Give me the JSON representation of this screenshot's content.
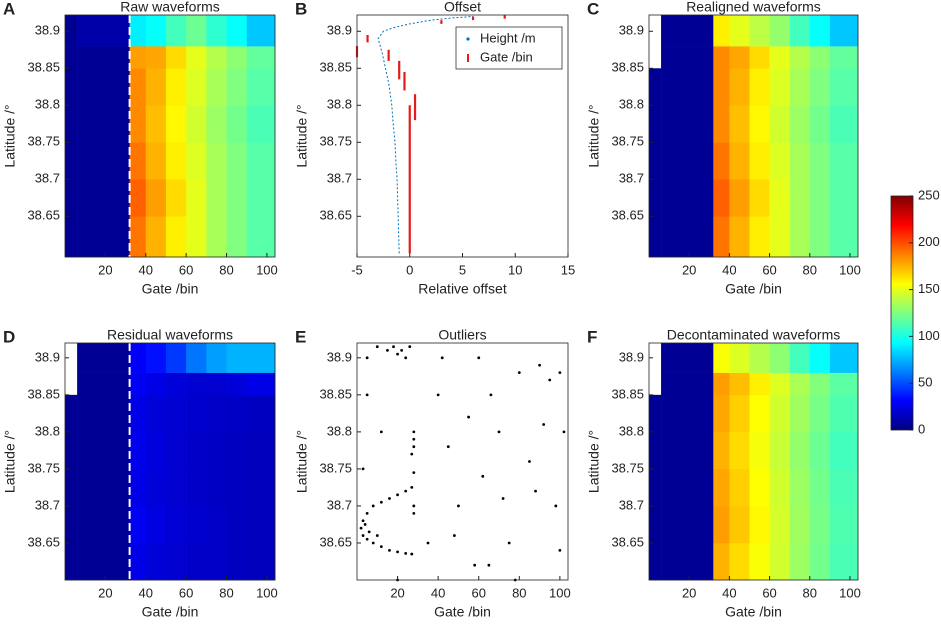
{
  "chart_data": [
    {
      "type": "heatmap",
      "label": "A",
      "title": "Raw waveforms",
      "xlabel": "Gate /bin",
      "ylabel": "Latitude /°",
      "xlim": [
        0,
        104
      ],
      "ylim": [
        38.595,
        38.922
      ],
      "xticks": [
        20,
        40,
        60,
        80,
        100
      ],
      "yticks": [
        38.65,
        38.7,
        38.75,
        38.8,
        38.85,
        38.9
      ],
      "x_bins": [
        0,
        6,
        32,
        40,
        50,
        60,
        70,
        80,
        90,
        104
      ],
      "y_bins": [
        38.595,
        38.65,
        38.7,
        38.75,
        38.8,
        38.85,
        38.88,
        38.922
      ],
      "values": [
        [
          5,
          5,
          190,
          175,
          160,
          150,
          135,
          125,
          115
        ],
        [
          5,
          5,
          195,
          180,
          165,
          150,
          135,
          125,
          115
        ],
        [
          5,
          5,
          190,
          175,
          160,
          148,
          135,
          125,
          115
        ],
        [
          5,
          5,
          185,
          172,
          158,
          145,
          132,
          122,
          112
        ],
        [
          5,
          5,
          185,
          175,
          160,
          148,
          135,
          125,
          115
        ],
        [
          5,
          5,
          180,
          178,
          165,
          150,
          138,
          128,
          118
        ],
        [
          5,
          10,
          90,
          95,
          110,
          120,
          105,
          95,
          80
        ]
      ]
    },
    {
      "type": "line",
      "label": "B",
      "title": "Offset",
      "xlabel": "Relative offset",
      "ylabel": "Latitude /°",
      "xlim": [
        -5,
        15
      ],
      "ylim": [
        38.595,
        38.922
      ],
      "xticks": [
        -5,
        0,
        5,
        10,
        15
      ],
      "yticks": [
        38.65,
        38.7,
        38.75,
        38.8,
        38.85,
        38.9
      ],
      "legend": "northeast",
      "series": [
        {
          "name": "Height /m",
          "color": "#0072bd",
          "x": [
            -1,
            -1.1,
            -1.2,
            -1.3,
            -1.4,
            -1.6,
            -1.7,
            -1.9,
            -2,
            -2.3,
            -2.6,
            -2.9,
            -3,
            -2.5,
            -1.5,
            0,
            2,
            4,
            6
          ],
          "y": [
            38.6,
            38.65,
            38.7,
            38.72,
            38.75,
            38.78,
            38.8,
            38.82,
            38.83,
            38.85,
            38.87,
            38.885,
            38.89,
            38.9,
            38.905,
            38.91,
            38.915,
            38.918,
            38.92
          ]
        },
        {
          "name": "Gate /bin",
          "color": "#e41a1c",
          "x": [
            0,
            0,
            null,
            0.5,
            0.5,
            null,
            -0.5,
            -0.5,
            null,
            -1,
            -1,
            null,
            -2,
            -2,
            null,
            -4,
            -4,
            null,
            -5,
            -5,
            null,
            3,
            3,
            null,
            6,
            6,
            null,
            9,
            9
          ],
          "y": [
            38.6,
            38.8,
            null,
            38.78,
            38.815,
            null,
            38.82,
            38.845,
            null,
            38.835,
            38.86,
            null,
            38.86,
            38.875,
            null,
            38.885,
            38.895,
            null,
            38.865,
            38.88,
            null,
            38.91,
            38.915,
            null,
            38.915,
            38.92,
            null,
            38.917,
            38.922
          ]
        }
      ]
    },
    {
      "type": "heatmap",
      "label": "C",
      "title": "Realigned waveforms",
      "xlabel": "Gate /bin",
      "ylabel": "Latitude /°",
      "xlim": [
        0,
        104
      ],
      "ylim": [
        38.595,
        38.922
      ],
      "xticks": [
        20,
        40,
        60,
        80,
        100
      ],
      "yticks": [
        38.65,
        38.7,
        38.75,
        38.8,
        38.85,
        38.9
      ],
      "x_bins": [
        0,
        6,
        32,
        40,
        50,
        60,
        70,
        80,
        90,
        104
      ],
      "y_bins": [
        38.595,
        38.65,
        38.7,
        38.75,
        38.8,
        38.85,
        38.88,
        38.922
      ],
      "values": [
        [
          5,
          5,
          190,
          175,
          160,
          150,
          135,
          125,
          115
        ],
        [
          5,
          5,
          195,
          180,
          165,
          150,
          135,
          125,
          115
        ],
        [
          5,
          5,
          190,
          175,
          160,
          148,
          135,
          125,
          115
        ],
        [
          5,
          5,
          185,
          172,
          158,
          145,
          132,
          122,
          112
        ],
        [
          5,
          5,
          185,
          175,
          160,
          148,
          135,
          125,
          115
        ],
        [
          null,
          5,
          185,
          178,
          165,
          150,
          138,
          128,
          118
        ],
        [
          null,
          5,
          160,
          150,
          140,
          130,
          110,
          95,
          80
        ]
      ]
    },
    {
      "type": "heatmap",
      "label": "D",
      "title": "Residual waveforms",
      "xlabel": "Gate /bin",
      "ylabel": "Latitude /°",
      "xlim": [
        0,
        104
      ],
      "ylim": [
        38.6,
        38.92
      ],
      "xticks": [
        20,
        40,
        60,
        80,
        100
      ],
      "yticks": [
        38.65,
        38.7,
        38.75,
        38.8,
        38.85,
        38.9
      ],
      "x_bins": [
        0,
        6,
        32,
        40,
        50,
        60,
        70,
        80,
        90,
        104
      ],
      "y_bins": [
        38.6,
        38.65,
        38.7,
        38.75,
        38.8,
        38.85,
        38.88,
        38.92
      ],
      "values": [
        [
          5,
          5,
          25,
          22,
          20,
          18,
          18,
          16,
          15
        ],
        [
          5,
          5,
          28,
          24,
          21,
          19,
          18,
          16,
          15
        ],
        [
          5,
          5,
          25,
          22,
          20,
          18,
          17,
          16,
          15
        ],
        [
          5,
          5,
          26,
          23,
          20,
          18,
          17,
          16,
          15
        ],
        [
          5,
          5,
          25,
          22,
          20,
          19,
          18,
          17,
          16
        ],
        [
          null,
          5,
          28,
          25,
          22,
          20,
          20,
          22,
          25
        ],
        [
          null,
          5,
          30,
          35,
          45,
          60,
          70,
          75,
          75
        ]
      ]
    },
    {
      "type": "scatter",
      "label": "E",
      "title": "Outliers",
      "xlabel": "Gate /bin",
      "ylabel": "Latitude /°",
      "xlim": [
        0,
        104
      ],
      "ylim": [
        38.6,
        38.92
      ],
      "xticks": [
        20,
        40,
        60,
        80,
        100
      ],
      "yticks": [
        38.65,
        38.7,
        38.75,
        38.8,
        38.85,
        38.9
      ],
      "color": "#000000",
      "x": [
        3,
        5,
        8,
        12,
        16,
        20,
        24,
        27,
        2,
        3,
        5,
        8,
        12,
        16,
        20,
        24,
        27,
        4,
        6,
        10,
        15,
        18,
        20,
        22,
        24,
        26,
        10,
        5,
        28,
        28,
        28,
        27,
        28,
        28,
        28,
        5,
        12,
        3,
        20,
        40,
        45,
        50,
        55,
        60,
        62,
        65,
        70,
        75,
        80,
        85,
        90,
        95,
        100,
        102,
        98,
        88,
        78,
        35,
        42,
        58,
        66,
        72,
        92,
        100,
        48
      ],
      "y": [
        38.66,
        38.655,
        38.65,
        38.645,
        38.64,
        38.638,
        38.636,
        38.635,
        38.67,
        38.68,
        38.69,
        38.7,
        38.705,
        38.71,
        38.715,
        38.72,
        38.725,
        38.675,
        38.665,
        38.66,
        38.91,
        38.915,
        38.905,
        38.91,
        38.9,
        38.915,
        38.915,
        38.9,
        38.8,
        38.79,
        38.78,
        38.77,
        38.745,
        38.7,
        38.69,
        38.85,
        38.8,
        38.75,
        38.6,
        38.85,
        38.78,
        38.7,
        38.82,
        38.9,
        38.74,
        38.62,
        38.8,
        38.65,
        38.88,
        38.76,
        38.89,
        38.87,
        38.88,
        38.8,
        38.7,
        38.72,
        38.6,
        38.65,
        38.9,
        38.62,
        38.85,
        38.71,
        38.81,
        38.64,
        38.66
      ]
    },
    {
      "type": "heatmap",
      "label": "F",
      "title": "Decontaminated waveforms",
      "xlabel": "Gate /bin",
      "ylabel": "Latitude /°",
      "xlim": [
        0,
        104
      ],
      "ylim": [
        38.6,
        38.92
      ],
      "xticks": [
        20,
        40,
        60,
        80,
        100
      ],
      "yticks": [
        38.65,
        38.7,
        38.75,
        38.8,
        38.85,
        38.9
      ],
      "x_bins": [
        0,
        6,
        32,
        40,
        50,
        60,
        70,
        80,
        90,
        104
      ],
      "y_bins": [
        38.6,
        38.65,
        38.7,
        38.75,
        38.8,
        38.85,
        38.88,
        38.92
      ],
      "values": [
        [
          5,
          5,
          175,
          165,
          155,
          145,
          132,
          122,
          112
        ],
        [
          5,
          5,
          180,
          170,
          158,
          146,
          133,
          123,
          113
        ],
        [
          5,
          5,
          178,
          168,
          156,
          145,
          132,
          122,
          112
        ],
        [
          5,
          5,
          175,
          165,
          154,
          143,
          130,
          120,
          110
        ],
        [
          5,
          5,
          178,
          168,
          156,
          145,
          133,
          123,
          113
        ],
        [
          null,
          5,
          180,
          172,
          160,
          148,
          136,
          126,
          116
        ],
        [
          null,
          5,
          155,
          148,
          138,
          128,
          110,
          95,
          80
        ]
      ]
    },
    {
      "type": "colorbar",
      "zlim": [
        0,
        250
      ],
      "zticks": [
        0,
        50,
        100,
        150,
        200,
        250
      ]
    }
  ]
}
